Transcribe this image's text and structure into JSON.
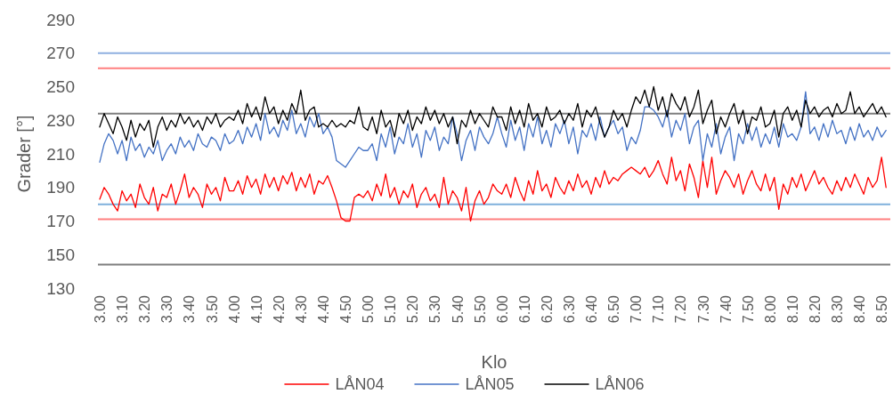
{
  "chart_data": {
    "type": "line",
    "xlabel": "Klo",
    "ylabel": "Grader [°]",
    "ylim": [
      130,
      290
    ],
    "yticks": [
      130,
      150,
      170,
      190,
      210,
      230,
      250,
      270,
      290
    ],
    "categories": [
      "3.00",
      null,
      null,
      null,
      null,
      "3.10",
      null,
      null,
      null,
      null,
      "3.20",
      null,
      null,
      null,
      null,
      "3.30",
      null,
      null,
      null,
      null,
      "3.40",
      null,
      null,
      null,
      null,
      "3.50",
      null,
      null,
      null,
      null,
      "4.00",
      null,
      null,
      null,
      null,
      "4.10",
      null,
      null,
      null,
      null,
      "4.20",
      null,
      null,
      null,
      null,
      "4.30",
      null,
      null,
      null,
      null,
      "4.40",
      null,
      null,
      null,
      null,
      "4.50",
      null,
      null,
      null,
      null,
      "5.00",
      null,
      null,
      null,
      null,
      "5.10",
      null,
      null,
      null,
      null,
      "5.20",
      null,
      null,
      null,
      null,
      "5.30",
      null,
      null,
      null,
      null,
      "5.40",
      null,
      null,
      null,
      null,
      "5.50",
      null,
      null,
      null,
      null,
      "6.00",
      null,
      null,
      null,
      null,
      "6.10",
      null,
      null,
      null,
      null,
      "6.20",
      null,
      null,
      null,
      null,
      "6.30",
      null,
      null,
      null,
      null,
      "6.40",
      null,
      null,
      null,
      null,
      "6.50",
      null,
      null,
      null,
      null,
      "7.00",
      null,
      null,
      null,
      null,
      "7.10",
      null,
      null,
      null,
      null,
      "7.20",
      null,
      null,
      null,
      null,
      "7.30",
      null,
      null,
      null,
      null,
      "7.40",
      null,
      null,
      null,
      null,
      "7.50",
      null,
      null,
      null,
      null,
      "8.00",
      null,
      null,
      null,
      null,
      "8.10",
      null,
      null,
      null,
      null,
      "8.20",
      null,
      null,
      null,
      null,
      "8.30",
      null,
      null,
      null,
      null,
      "8.40",
      null,
      null,
      null,
      null,
      "8.50",
      null
    ],
    "series": [
      {
        "name": "LÅN04",
        "color": "#ff0000",
        "values": [
          183,
          190,
          186,
          180,
          176,
          188,
          182,
          186,
          178,
          192,
          184,
          180,
          190,
          176,
          186,
          184,
          192,
          180,
          188,
          198,
          184,
          190,
          186,
          178,
          192,
          186,
          190,
          182,
          196,
          188,
          188,
          194,
          186,
          197,
          190,
          195,
          186,
          198,
          190,
          196,
          188,
          197,
          192,
          199,
          188,
          196,
          190,
          198,
          186,
          194,
          192,
          197,
          190,
          182,
          172,
          170,
          170,
          184,
          186,
          184,
          188,
          182,
          192,
          185,
          198,
          184,
          190,
          180,
          188,
          184,
          192,
          178,
          186,
          190,
          182,
          186,
          178,
          196,
          180,
          188,
          184,
          176,
          190,
          170,
          182,
          188,
          180,
          184,
          192,
          188,
          186,
          192,
          184,
          196,
          188,
          182,
          194,
          186,
          200,
          188,
          192,
          184,
          196,
          190,
          186,
          194,
          188,
          198,
          190,
          194,
          186,
          196,
          190,
          200,
          192,
          196,
          194,
          198,
          200,
          202,
          200,
          198,
          202,
          196,
          200,
          206,
          198,
          192,
          208,
          194,
          200,
          188,
          204,
          196,
          184,
          206,
          190,
          208,
          186,
          194,
          200,
          196,
          190,
          198,
          186,
          194,
          200,
          192,
          188,
          198,
          188,
          196,
          177,
          192,
          186,
          196,
          190,
          198,
          188,
          194,
          200,
          192,
          196,
          190,
          186,
          194,
          188,
          196,
          190,
          198,
          192,
          186,
          196,
          190,
          194,
          208,
          190
        ]
      },
      {
        "name": "LÅN05",
        "color": "#4472c4",
        "values": [
          205,
          216,
          222,
          218,
          210,
          218,
          206,
          220,
          212,
          216,
          208,
          214,
          210,
          218,
          206,
          212,
          216,
          210,
          220,
          214,
          218,
          212,
          222,
          216,
          214,
          220,
          218,
          212,
          222,
          216,
          218,
          224,
          216,
          226,
          220,
          228,
          218,
          234,
          222,
          226,
          220,
          230,
          224,
          236,
          222,
          228,
          220,
          232,
          226,
          234,
          222,
          226,
          220,
          206,
          204,
          202,
          206,
          210,
          214,
          212,
          212,
          216,
          206,
          222,
          214,
          226,
          210,
          220,
          216,
          228,
          214,
          222,
          208,
          224,
          218,
          226,
          212,
          220,
          216,
          232,
          222,
          206,
          218,
          224,
          212,
          226,
          220,
          216,
          222,
          232,
          222,
          214,
          230,
          218,
          226,
          212,
          228,
          220,
          232,
          216,
          224,
          214,
          228,
          222,
          230,
          216,
          226,
          210,
          224,
          220,
          228,
          218,
          232,
          220,
          226,
          230,
          222,
          226,
          212,
          220,
          216,
          224,
          238,
          238,
          236,
          232,
          226,
          236,
          220,
          230,
          224,
          234,
          216,
          226,
          230,
          206,
          222,
          214,
          228,
          210,
          220,
          226,
          206,
          222,
          216,
          228,
          218,
          226,
          214,
          222,
          216,
          226,
          214,
          228,
          220,
          222,
          218,
          226,
          247,
          222,
          226,
          218,
          228,
          220,
          230,
          222,
          224,
          216,
          226,
          218,
          228,
          220,
          224,
          218,
          226,
          220,
          224
        ]
      },
      {
        "name": "LÅN06",
        "color": "#000000",
        "values": [
          226,
          234,
          228,
          222,
          232,
          226,
          218,
          230,
          220,
          228,
          224,
          230,
          214,
          226,
          232,
          224,
          230,
          226,
          234,
          228,
          232,
          226,
          230,
          224,
          232,
          228,
          234,
          226,
          230,
          232,
          230,
          236,
          228,
          240,
          232,
          238,
          230,
          244,
          234,
          238,
          228,
          236,
          230,
          240,
          234,
          248,
          230,
          236,
          238,
          226,
          228,
          226,
          230,
          226,
          228,
          226,
          230,
          228,
          238,
          226,
          224,
          232,
          222,
          236,
          226,
          230,
          220,
          234,
          228,
          236,
          224,
          232,
          228,
          238,
          230,
          236,
          228,
          234,
          226,
          232,
          216,
          230,
          226,
          236,
          228,
          234,
          230,
          226,
          238,
          232,
          232,
          224,
          238,
          228,
          236,
          226,
          240,
          230,
          234,
          226,
          238,
          230,
          232,
          236,
          228,
          234,
          230,
          240,
          226,
          236,
          232,
          238,
          228,
          220,
          226,
          236,
          230,
          234,
          226,
          236,
          244,
          240,
          248,
          238,
          250,
          236,
          244,
          232,
          246,
          240,
          236,
          244,
          232,
          238,
          248,
          228,
          236,
          242,
          222,
          232,
          226,
          234,
          240,
          228,
          236,
          222,
          232,
          230,
          238,
          226,
          228,
          236,
          220,
          234,
          238,
          230,
          236,
          226,
          242,
          234,
          238,
          232,
          236,
          238,
          232,
          240,
          234,
          236,
          247,
          234,
          238,
          232,
          236,
          240,
          234,
          238,
          232
        ]
      }
    ],
    "ref_lines": [
      {
        "axis": "y",
        "value": 261,
        "color": "#ff8080"
      },
      {
        "axis": "y",
        "value": 171,
        "color": "#ff8080"
      },
      {
        "axis": "y",
        "value": 270,
        "color": "#8fb0e0"
      },
      {
        "axis": "y",
        "value": 180,
        "color": "#7fb0dc"
      },
      {
        "axis": "y",
        "value": 234,
        "color": "#7f7f7f"
      },
      {
        "axis": "y",
        "value": 144,
        "color": "#7f7f7f"
      }
    ],
    "legend": "bottom"
  }
}
